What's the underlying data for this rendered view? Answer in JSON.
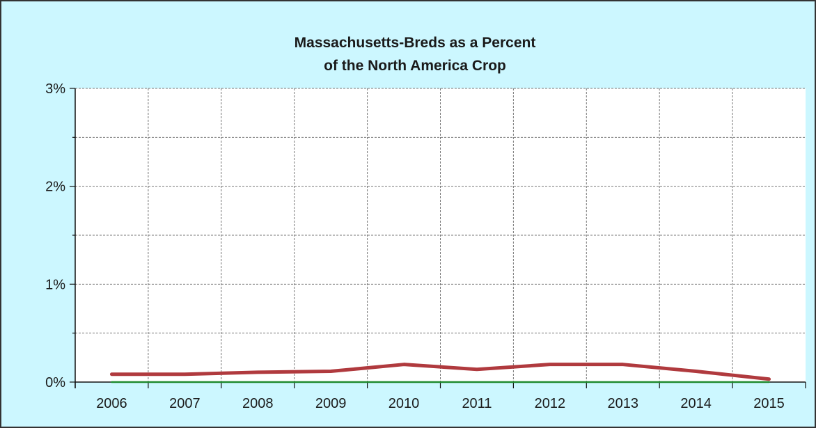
{
  "chart_data": {
    "type": "line",
    "title": [
      "Massachusetts-Breds as a Percent",
      "of the North America Crop"
    ],
    "xlabel": "",
    "ylabel": "",
    "categories": [
      "2006",
      "2007",
      "2008",
      "2009",
      "2010",
      "2011",
      "2012",
      "2013",
      "2014",
      "2015"
    ],
    "y_ticks": [
      "0%",
      "1%",
      "2%",
      "3%"
    ],
    "ylim": [
      0,
      3
    ],
    "grid": true,
    "series": [
      {
        "color": "#b03a3e",
        "values": [
          0.08,
          0.08,
          0.1,
          0.11,
          0.18,
          0.13,
          0.18,
          0.18,
          0.11,
          0.03
        ]
      },
      {
        "color": "#1e8a2e",
        "values": [
          0,
          0,
          0,
          0,
          0,
          0,
          0,
          0,
          0,
          0
        ]
      }
    ],
    "colors": {
      "background": "#ccf7ff",
      "plot_area": "#ffffff",
      "grid": "#777777"
    }
  }
}
